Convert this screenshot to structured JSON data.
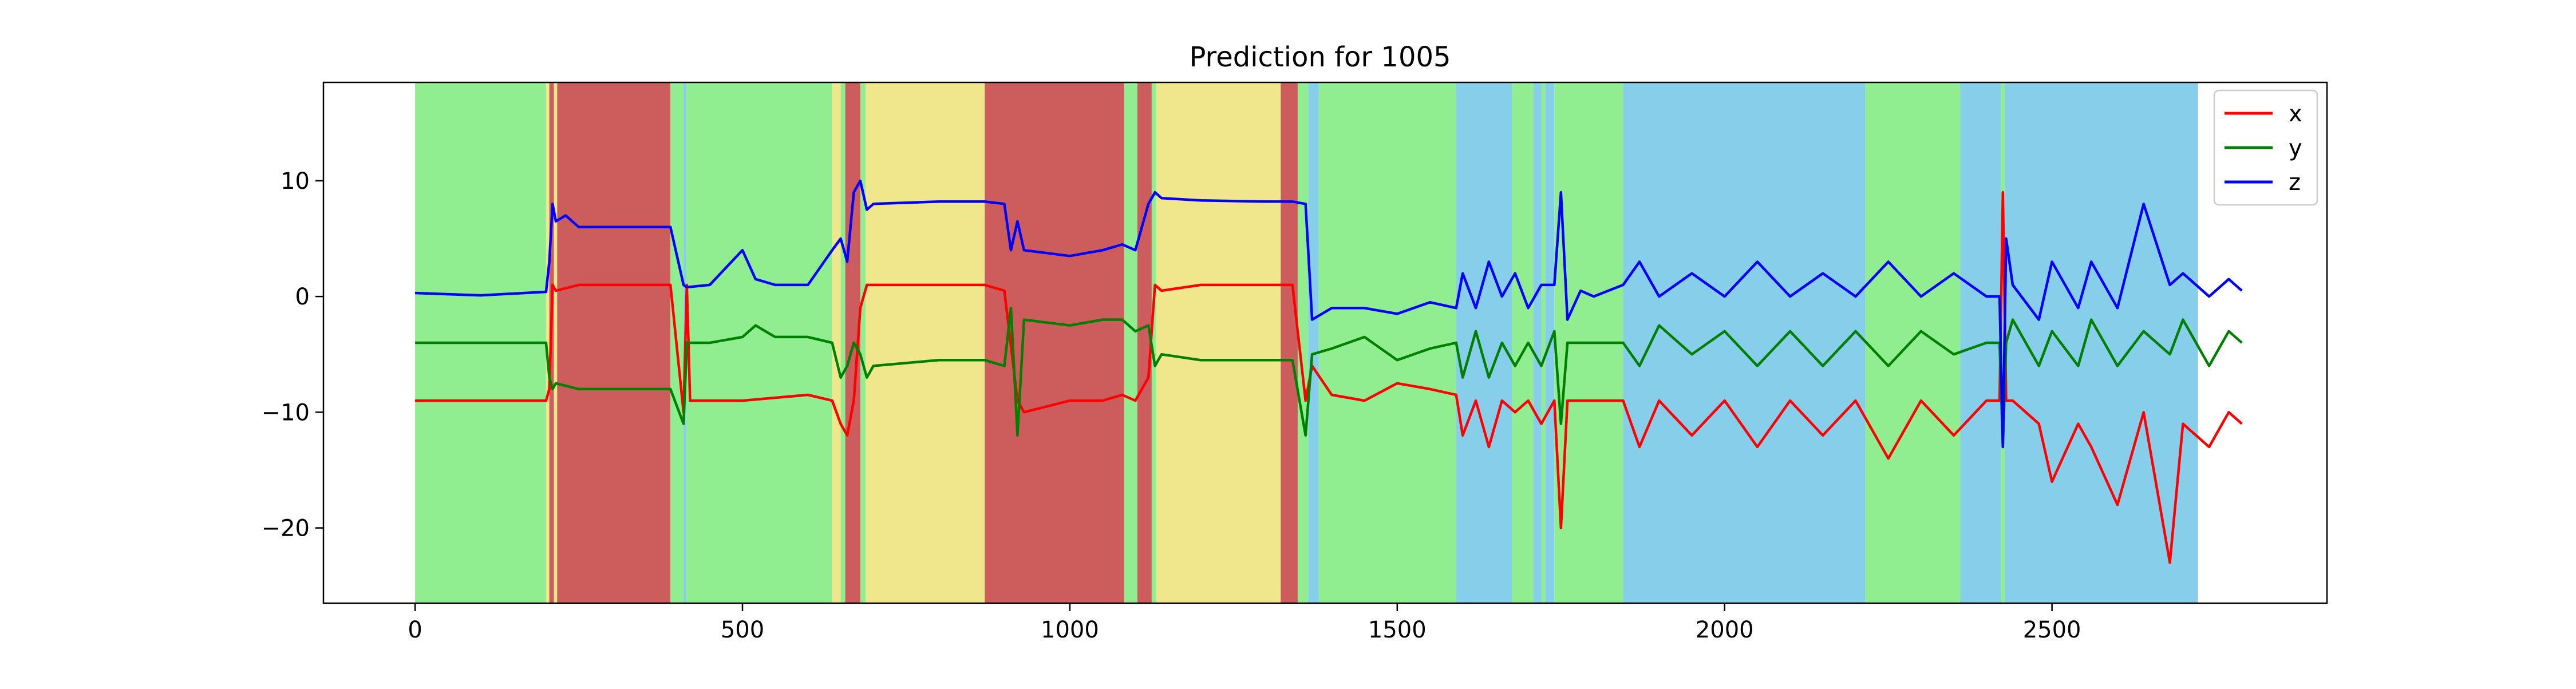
{
  "chart_data": {
    "type": "line",
    "title": "Prediction for 1005",
    "xlabel": "",
    "ylabel": "",
    "xlim": [
      -140,
      2920
    ],
    "ylim": [
      -26.5,
      18.5
    ],
    "xticks": [
      0,
      500,
      1000,
      1500,
      2000,
      2500
    ],
    "yticks": [
      -20,
      -10,
      0,
      10
    ],
    "grid": false,
    "legend_position": "top-right",
    "colors": {
      "x": "#ff0000",
      "y": "#008000",
      "z": "#0000ff",
      "band_green": "#90ee90",
      "band_red": "#cd5c5c",
      "band_yellow": "#f0e68c",
      "band_blue": "#87ceeb"
    },
    "background_bands": [
      {
        "start": 0,
        "end": 200,
        "class": "green"
      },
      {
        "start": 200,
        "end": 205,
        "class": "yellow"
      },
      {
        "start": 205,
        "end": 212,
        "class": "red"
      },
      {
        "start": 212,
        "end": 217,
        "class": "yellow"
      },
      {
        "start": 217,
        "end": 390,
        "class": "red"
      },
      {
        "start": 390,
        "end": 410,
        "class": "green"
      },
      {
        "start": 410,
        "end": 414,
        "class": "blue"
      },
      {
        "start": 414,
        "end": 637,
        "class": "green"
      },
      {
        "start": 637,
        "end": 650,
        "class": "yellow"
      },
      {
        "start": 650,
        "end": 657,
        "class": "green"
      },
      {
        "start": 657,
        "end": 680,
        "class": "red"
      },
      {
        "start": 680,
        "end": 688,
        "class": "green"
      },
      {
        "start": 688,
        "end": 870,
        "class": "yellow"
      },
      {
        "start": 870,
        "end": 1083,
        "class": "red"
      },
      {
        "start": 1083,
        "end": 1103,
        "class": "green"
      },
      {
        "start": 1103,
        "end": 1125,
        "class": "red"
      },
      {
        "start": 1125,
        "end": 1132,
        "class": "green"
      },
      {
        "start": 1132,
        "end": 1322,
        "class": "yellow"
      },
      {
        "start": 1322,
        "end": 1348,
        "class": "red"
      },
      {
        "start": 1348,
        "end": 1364,
        "class": "green"
      },
      {
        "start": 1364,
        "end": 1380,
        "class": "blue"
      },
      {
        "start": 1380,
        "end": 1590,
        "class": "green"
      },
      {
        "start": 1590,
        "end": 1675,
        "class": "blue"
      },
      {
        "start": 1675,
        "end": 1708,
        "class": "green"
      },
      {
        "start": 1708,
        "end": 1720,
        "class": "blue"
      },
      {
        "start": 1720,
        "end": 1726,
        "class": "green"
      },
      {
        "start": 1726,
        "end": 1740,
        "class": "blue"
      },
      {
        "start": 1740,
        "end": 1845,
        "class": "green"
      },
      {
        "start": 1845,
        "end": 2215,
        "class": "blue"
      },
      {
        "start": 2215,
        "end": 2360,
        "class": "green"
      },
      {
        "start": 2360,
        "end": 2422,
        "class": "blue"
      },
      {
        "start": 2422,
        "end": 2428,
        "class": "green"
      },
      {
        "start": 2428,
        "end": 2723,
        "class": "blue"
      }
    ],
    "series": [
      {
        "name": "x",
        "x": [
          0,
          100,
          200,
          205,
          210,
          215,
          250,
          300,
          390,
          410,
          415,
          420,
          450,
          500,
          600,
          637,
          650,
          660,
          670,
          680,
          690,
          700,
          800,
          870,
          900,
          920,
          930,
          1000,
          1050,
          1080,
          1100,
          1120,
          1130,
          1140,
          1200,
          1300,
          1340,
          1360,
          1370,
          1400,
          1450,
          1500,
          1550,
          1590,
          1600,
          1620,
          1640,
          1660,
          1680,
          1700,
          1720,
          1740,
          1750,
          1760,
          1780,
          1800,
          1845,
          1870,
          1900,
          1950,
          2000,
          2050,
          2100,
          2150,
          2200,
          2250,
          2300,
          2350,
          2400,
          2420,
          2425,
          2430,
          2440,
          2480,
          2500,
          2540,
          2560,
          2600,
          2640,
          2680,
          2700,
          2740,
          2770,
          2790
        ],
        "values": [
          -9,
          -9,
          -9,
          -8,
          1,
          0.5,
          1,
          1,
          1,
          -10,
          1,
          -9,
          -9,
          -9,
          -8.5,
          -9,
          -11,
          -12,
          -9,
          -1,
          1,
          1,
          1,
          1,
          0.5,
          -9,
          -10,
          -9,
          -9,
          -8.5,
          -9,
          -7,
          1,
          0.5,
          1,
          1,
          1,
          -9,
          -6,
          -8.5,
          -9,
          -7.5,
          -8,
          -8.5,
          -12,
          -9,
          -13,
          -9,
          -10,
          -9,
          -11,
          -9,
          -20,
          -9,
          -9,
          -9,
          -9,
          -13,
          -9,
          -12,
          -9,
          -13,
          -9,
          -12,
          -9,
          -14,
          -9,
          -12,
          -9,
          -9,
          9,
          -9,
          -9,
          -11,
          -16,
          -11,
          -13,
          -18,
          -10,
          -23,
          -11,
          -13,
          -10,
          -11
        ]
      },
      {
        "name": "y",
        "x": [
          0,
          100,
          200,
          205,
          210,
          215,
          250,
          300,
          390,
          410,
          415,
          450,
          500,
          520,
          550,
          600,
          637,
          650,
          660,
          670,
          680,
          690,
          700,
          800,
          870,
          900,
          910,
          920,
          930,
          1000,
          1050,
          1080,
          1100,
          1120,
          1130,
          1140,
          1200,
          1300,
          1340,
          1360,
          1370,
          1400,
          1450,
          1500,
          1550,
          1590,
          1600,
          1620,
          1640,
          1660,
          1680,
          1700,
          1720,
          1740,
          1750,
          1760,
          1780,
          1800,
          1845,
          1870,
          1900,
          1950,
          2000,
          2050,
          2100,
          2150,
          2200,
          2250,
          2300,
          2350,
          2400,
          2420,
          2425,
          2430,
          2440,
          2480,
          2500,
          2540,
          2560,
          2600,
          2640,
          2680,
          2700,
          2740,
          2770,
          2790
        ],
        "values": [
          -4,
          -4,
          -4,
          -7,
          -8,
          -7.5,
          -8,
          -8,
          -8,
          -11,
          -4,
          -4,
          -3.5,
          -2.5,
          -3.5,
          -3.5,
          -4,
          -7,
          -6,
          -4,
          -5,
          -7,
          -6,
          -5.5,
          -5.5,
          -6,
          -1,
          -12,
          -2,
          -2.5,
          -2,
          -2,
          -3,
          -2.5,
          -6,
          -5,
          -5.5,
          -5.5,
          -5.5,
          -12,
          -5,
          -4.5,
          -3.5,
          -5.5,
          -4.5,
          -4,
          -7,
          -3,
          -7,
          -4,
          -6,
          -4,
          -6,
          -3,
          -11,
          -4,
          -4,
          -4,
          -4,
          -6,
          -2.5,
          -5,
          -3,
          -6,
          -3,
          -6,
          -3,
          -6,
          -3,
          -5,
          -4,
          -4,
          -13,
          -4,
          -2,
          -6,
          -3,
          -6,
          -2,
          -6,
          -3,
          -5,
          -2,
          -6,
          -3,
          -4
        ]
      },
      {
        "name": "z",
        "x": [
          0,
          100,
          200,
          205,
          210,
          215,
          230,
          250,
          300,
          390,
          410,
          415,
          450,
          500,
          520,
          550,
          600,
          637,
          650,
          660,
          670,
          680,
          690,
          700,
          800,
          870,
          900,
          910,
          920,
          930,
          1000,
          1050,
          1080,
          1100,
          1120,
          1130,
          1140,
          1200,
          1300,
          1340,
          1360,
          1370,
          1400,
          1450,
          1500,
          1550,
          1590,
          1600,
          1620,
          1640,
          1660,
          1680,
          1700,
          1720,
          1740,
          1750,
          1760,
          1780,
          1800,
          1845,
          1870,
          1900,
          1950,
          2000,
          2050,
          2100,
          2150,
          2200,
          2250,
          2300,
          2350,
          2400,
          2420,
          2425,
          2430,
          2440,
          2480,
          2500,
          2540,
          2560,
          2600,
          2640,
          2680,
          2700,
          2740,
          2770,
          2790
        ],
        "values": [
          0.3,
          0.1,
          0.4,
          3,
          8,
          6.5,
          7,
          6,
          6,
          6,
          1,
          0.8,
          1,
          4,
          1.5,
          1,
          1,
          4,
          5,
          3,
          9,
          10,
          7.5,
          8,
          8.2,
          8.2,
          8,
          4,
          6.5,
          4,
          3.5,
          4,
          4.5,
          4,
          8,
          9,
          8.5,
          8.3,
          8.2,
          8.2,
          8,
          -2,
          -1,
          -1,
          -1.5,
          -0.5,
          -1,
          2,
          -1,
          3,
          0,
          2,
          -1,
          1,
          1,
          9,
          -2,
          0.5,
          0,
          1,
          3,
          0,
          2,
          0,
          3,
          0,
          2,
          0,
          3,
          0,
          2,
          0,
          0,
          -13,
          5,
          1,
          -2,
          3,
          -1,
          3,
          -1,
          8,
          1,
          2,
          0,
          1.5,
          0.5
        ]
      }
    ],
    "legend": [
      "x",
      "y",
      "z"
    ]
  }
}
